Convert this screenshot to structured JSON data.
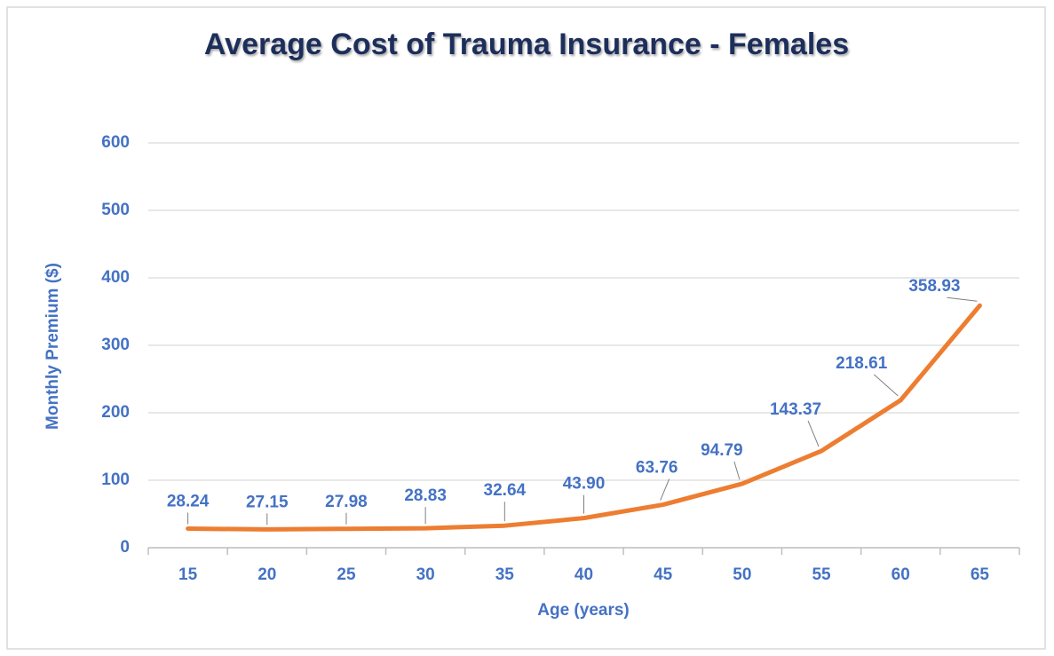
{
  "chart_data": {
    "type": "line",
    "title": "Average Cost of Trauma Insurance - Females",
    "x_label": "Age (years)",
    "y_label": "Monthly Premium ($)",
    "categories": [
      "15",
      "20",
      "25",
      "30",
      "35",
      "40",
      "45",
      "50",
      "55",
      "60",
      "65"
    ],
    "series": [
      {
        "name": "Females",
        "color": "#ed7d31",
        "values": [
          28.24,
          27.15,
          27.98,
          28.83,
          32.64,
          43.9,
          63.76,
          94.79,
          143.37,
          218.61,
          358.93
        ],
        "value_labels": [
          "28.24",
          "27.15",
          "27.98",
          "28.83",
          "32.64",
          "43.90",
          "63.76",
          "94.79",
          "143.37",
          "218.61",
          "358.93"
        ]
      }
    ],
    "ylim": [
      0,
      600
    ],
    "yticks": [
      0,
      100,
      200,
      300,
      400,
      500,
      600
    ],
    "grid": true
  }
}
